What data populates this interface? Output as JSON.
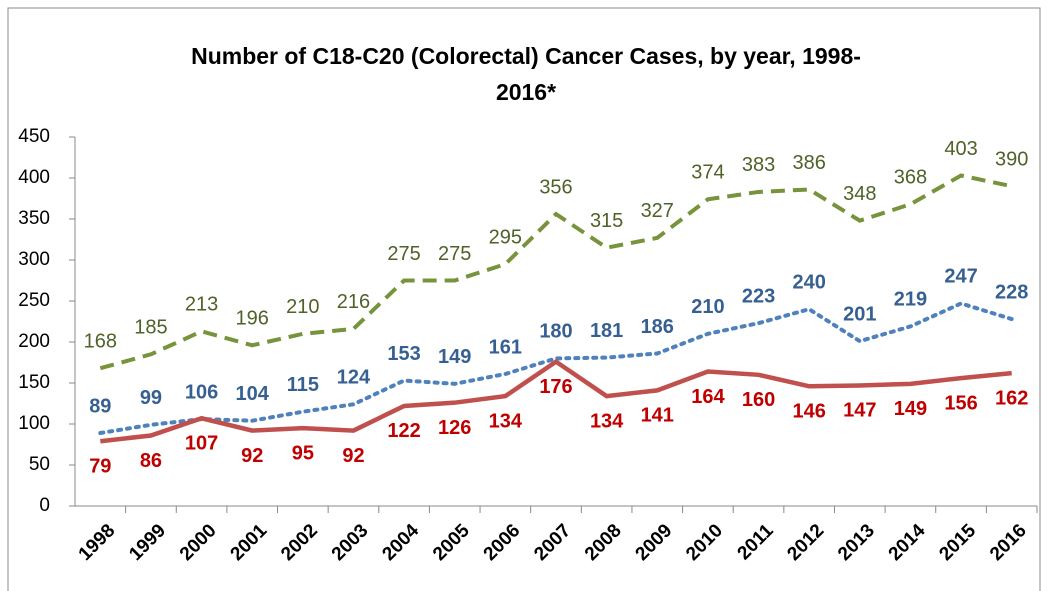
{
  "chart_data": {
    "type": "line",
    "title": "Number of C18-C20 (Colorectal) Cancer Cases, by year, 1998-2016*",
    "categories": [
      "1998",
      "1999",
      "2000",
      "2001",
      "2002",
      "2003",
      "2004",
      "2005",
      "2006",
      "2007",
      "2008",
      "2009",
      "2010",
      "2011",
      "2012",
      "2013",
      "2014",
      "2015",
      "2016"
    ],
    "series": [
      {
        "color": "#77933c",
        "label_color": "#4f6228",
        "line_style": "dashed",
        "label_position": "above",
        "label_bold": false,
        "values": [
          168,
          185,
          213,
          196,
          210,
          216,
          275,
          275,
          295,
          356,
          315,
          327,
          374,
          383,
          386,
          348,
          368,
          403,
          390
        ]
      },
      {
        "color": "#4f81bd",
        "label_color": "#376092",
        "line_style": "dotted",
        "label_position": "above",
        "label_bold": true,
        "values": [
          89,
          99,
          106,
          104,
          115,
          124,
          153,
          149,
          161,
          180,
          181,
          186,
          210,
          223,
          240,
          201,
          219,
          247,
          228
        ]
      },
      {
        "color": "#c0504d",
        "label_color": "#c00000",
        "line_style": "solid",
        "label_position": "below",
        "label_bold": true,
        "values": [
          79,
          86,
          107,
          92,
          95,
          92,
          122,
          126,
          134,
          176,
          134,
          141,
          164,
          160,
          146,
          147,
          149,
          156,
          162
        ]
      }
    ],
    "ylim": [
      0,
      450
    ],
    "yticks": [
      0,
      50,
      100,
      150,
      200,
      250,
      300,
      350,
      400,
      450
    ],
    "grid": false
  }
}
